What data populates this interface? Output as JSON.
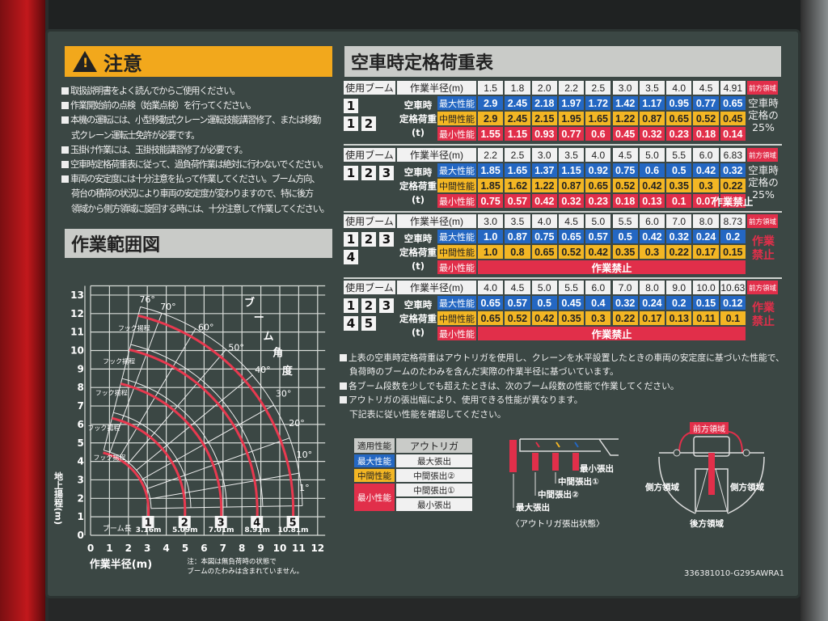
{
  "warning": {
    "title": "注意",
    "icon": "warning-triangle-icon",
    "items": [
      "取扱説明書をよく読んでからご使用ください。",
      "作業開始前の点検（始業点検）を行ってください。",
      "本機の運転には、小型移動式クレーン運転技能講習修了、または移動",
      "式クレーン運転士免許が必要です。",
      "玉掛け作業には、玉掛技能講習修了が必要です。",
      "空車時定格荷重表に従って、過負荷作業は絶対に行わないでください。",
      "車両の安定度には十分注意を払って作業してください。ブーム方向、",
      "荷台の積荷の状況により車両の安定度が変わりますので、特に後方",
      "領域から側方領域に旋回する時には、十分注意して作業してください。"
    ]
  },
  "range_diagram": {
    "title": "作業範囲図",
    "x_label": "作業半径(m)",
    "y_label": "地上揚程(m)",
    "x_ticks": [
      "0",
      "1",
      "2",
      "3",
      "4",
      "5",
      "6",
      "7",
      "8",
      "9",
      "10",
      "11",
      "12"
    ],
    "y_ticks": [
      "0",
      "1",
      "2",
      "3",
      "4",
      "5",
      "6",
      "7",
      "8",
      "9",
      "10",
      "11",
      "12",
      "13"
    ],
    "boom_angle_label": [
      "ブ",
      "ー",
      "ム",
      "角",
      "度"
    ],
    "angles": [
      "76°",
      "70°",
      "60°",
      "50°",
      "40°",
      "30°",
      "20°",
      "10°",
      "1°"
    ],
    "hook_label": "フック揚程",
    "boom_length_label": "ブーム長",
    "booms": [
      {
        "num": "1",
        "length": "3.16m"
      },
      {
        "num": "2",
        "length": "5.09m"
      },
      {
        "num": "3",
        "length": "7.01m"
      },
      {
        "num": "4",
        "length": "8.91m"
      },
      {
        "num": "5",
        "length": "10.81m"
      }
    ],
    "note": [
      "注：本図は無負荷時の状態で",
      "ブームのたわみは含まれていません。"
    ]
  },
  "load_table": {
    "title": "空車時定格荷重表",
    "boom_label": "使用ブーム",
    "radius_label": "作業半径(m)",
    "front_label": "前方領域",
    "load_label": [
      "空車時",
      "定格荷重",
      "(t)"
    ],
    "perf_labels": {
      "max": "最大性能",
      "mid": "中間性能",
      "min": "最小性能"
    },
    "colors": {
      "max": "#2467c2",
      "mid": "#f3b624",
      "min": "#e12f4a"
    },
    "tables": [
      {
        "booms": [
          [
            "1"
          ],
          [
            "1",
            "2"
          ]
        ],
        "radii": [
          "1.5",
          "1.8",
          "2.0",
          "2.2",
          "2.5",
          "3.0",
          "3.5",
          "4.0",
          "4.5",
          "4.91"
        ],
        "max": [
          "2.9",
          "2.45",
          "2.18",
          "1.97",
          "1.72",
          "1.42",
          "1.17",
          "0.95",
          "0.77",
          "0.65"
        ],
        "mid": [
          "2.9",
          "2.45",
          "2.15",
          "1.95",
          "1.65",
          "1.22",
          "0.87",
          "0.65",
          "0.52",
          "0.45"
        ],
        "min": [
          "1.55",
          "1.15",
          "0.93",
          "0.77",
          "0.6",
          "0.45",
          "0.32",
          "0.23",
          "0.18",
          "0.14"
        ],
        "side_note": [
          "空車時",
          "定格の",
          "25%"
        ],
        "side_stop": false
      },
      {
        "booms": [
          [
            "1",
            "2",
            "3"
          ]
        ],
        "radii": [
          "2.2",
          "2.5",
          "3.0",
          "3.5",
          "4.0",
          "4.5",
          "5.0",
          "5.5",
          "6.0",
          "6.83"
        ],
        "max": [
          "1.85",
          "1.65",
          "1.37",
          "1.15",
          "0.92",
          "0.75",
          "0.6",
          "0.5",
          "0.42",
          "0.32"
        ],
        "mid": [
          "1.85",
          "1.62",
          "1.22",
          "0.87",
          "0.65",
          "0.52",
          "0.42",
          "0.35",
          "0.3",
          "0.22"
        ],
        "min": [
          "0.75",
          "0.57",
          "0.42",
          "0.32",
          "0.23",
          "0.18",
          "0.13",
          "0.1",
          "0.07",
          "作業禁止"
        ],
        "side_note": [
          "空車時",
          "定格の",
          "25%"
        ],
        "side_stop": false
      },
      {
        "booms": [
          [
            "1",
            "2",
            "3"
          ],
          [
            "4"
          ]
        ],
        "radii": [
          "3.0",
          "3.5",
          "4.0",
          "4.5",
          "5.0",
          "5.5",
          "6.0",
          "7.0",
          "8.0",
          "8.73"
        ],
        "max": [
          "1.0",
          "0.87",
          "0.75",
          "0.65",
          "0.57",
          "0.5",
          "0.42",
          "0.32",
          "0.24",
          "0.2"
        ],
        "mid": [
          "1.0",
          "0.8",
          "0.65",
          "0.52",
          "0.42",
          "0.35",
          "0.3",
          "0.22",
          "0.17",
          "0.15"
        ],
        "min_prohibited": "作業禁止",
        "side_note": [
          "作業",
          "禁止"
        ],
        "side_stop": true
      },
      {
        "booms": [
          [
            "1",
            "2",
            "3"
          ],
          [
            "4",
            "5"
          ]
        ],
        "radii": [
          "4.0",
          "4.5",
          "5.0",
          "5.5",
          "6.0",
          "7.0",
          "8.0",
          "9.0",
          "10.0",
          "10.63"
        ],
        "max": [
          "0.65",
          "0.57",
          "0.5",
          "0.45",
          "0.4",
          "0.32",
          "0.24",
          "0.2",
          "0.15",
          "0.12"
        ],
        "mid": [
          "0.65",
          "0.52",
          "0.42",
          "0.35",
          "0.3",
          "0.22",
          "0.17",
          "0.13",
          "0.11",
          "0.1"
        ],
        "min_prohibited": "作業禁止",
        "side_note": [
          "作業",
          "禁止"
        ],
        "side_stop": true
      }
    ]
  },
  "notes": [
    "上表の空車時定格荷重はアウトリガを使用し、クレーンを水平設置したときの車両の安定度に基づいた性能で、",
    "負荷時のブームのたわみを含んだ実際の作業半径に基づいています。",
    "各ブーム段数を少しでも超えたときは、次のブーム段数の性能で作業してください。",
    "アウトリガの張出幅により、使用できる性能が異なります。",
    "下記表に従い性能を確認してください。"
  ],
  "outrigger_legend": {
    "header": [
      "適用性能",
      "アウトリガ"
    ],
    "rows": [
      {
        "perf": "最大性能",
        "outrigger": "最大張出"
      },
      {
        "perf": "中間性能",
        "outrigger": "中間張出②"
      },
      {
        "perf": "最小性能",
        "outrigger": "中間張出①"
      },
      {
        "perf": "",
        "outrigger": "最小張出"
      }
    ]
  },
  "outrigger_diagram": {
    "labels": [
      "最小張出",
      "中間張出①",
      "中間張出②",
      "最大張出"
    ],
    "caption": "〈アウトリガ張出状態〉"
  },
  "area_diagram": {
    "front": "前方領域",
    "side_left": "側方領域",
    "side_right": "側方領域",
    "rear": "後方領域"
  },
  "part_code": "336381010-G295AWRA1"
}
